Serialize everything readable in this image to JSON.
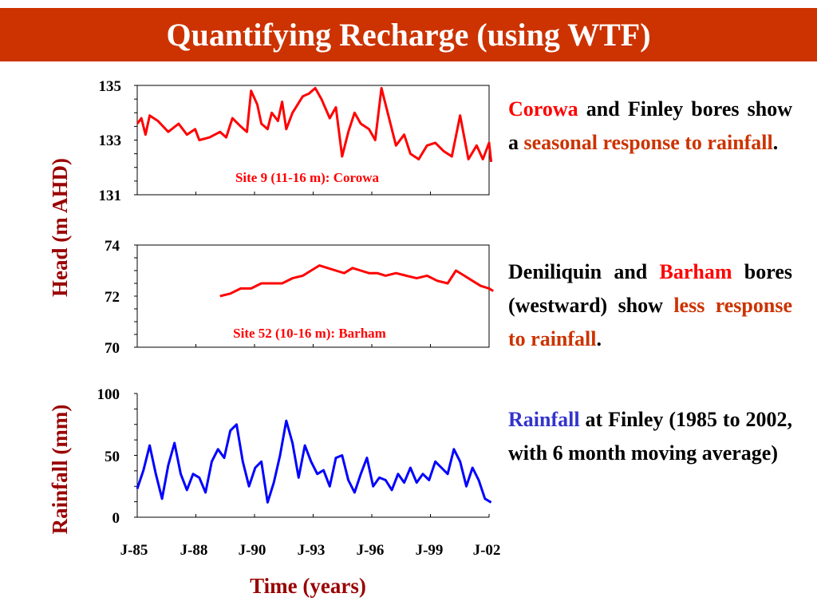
{
  "title": "Quantifying Recharge (using WTF)",
  "colors": {
    "title_bar": "#cc3300",
    "head_series": "#ff0000",
    "rainfall_series": "#0000ff",
    "axis_title": "#990000",
    "highlight_red": "#ff0000",
    "highlight_orange": "#cc3300",
    "highlight_blue": "#3333cc"
  },
  "shared_axes": {
    "head_ylabel": "Head (m AHD)",
    "rainfall_ylabel": "Rainfall (mm)",
    "xlabel": "Time (years)",
    "x_tick_labels": [
      "J-85",
      "J-88",
      "J-90",
      "J-93",
      "J-96",
      "J-99",
      "J-02"
    ]
  },
  "chart_data": [
    {
      "type": "line",
      "name": "corowa-head",
      "label": "Site 9 (11-16 m): Corowa",
      "ylim": [
        131,
        135
      ],
      "y_ticks": [
        "135",
        "133",
        "131"
      ],
      "xlim": [
        1985.0,
        2002.0
      ],
      "grid": false,
      "series": [
        {
          "color": "#ff0000",
          "points": [
            [
              1985.0,
              133.6
            ],
            [
              1985.2,
              133.8
            ],
            [
              1985.4,
              133.2
            ],
            [
              1985.6,
              133.9
            ],
            [
              1986.0,
              133.7
            ],
            [
              1986.5,
              133.3
            ],
            [
              1987.0,
              133.6
            ],
            [
              1987.4,
              133.2
            ],
            [
              1987.8,
              133.4
            ],
            [
              1988.0,
              133.0
            ],
            [
              1988.5,
              133.1
            ],
            [
              1989.0,
              133.3
            ],
            [
              1989.3,
              133.1
            ],
            [
              1989.6,
              133.8
            ],
            [
              1990.0,
              133.5
            ],
            [
              1990.3,
              133.3
            ],
            [
              1990.5,
              134.8
            ],
            [
              1990.8,
              134.3
            ],
            [
              1991.0,
              133.6
            ],
            [
              1991.3,
              133.4
            ],
            [
              1991.5,
              134.0
            ],
            [
              1991.8,
              133.7
            ],
            [
              1992.0,
              134.4
            ],
            [
              1992.2,
              133.4
            ],
            [
              1992.5,
              134.0
            ],
            [
              1993.0,
              134.6
            ],
            [
              1993.3,
              134.7
            ],
            [
              1993.6,
              134.9
            ],
            [
              1993.9,
              134.5
            ],
            [
              1994.3,
              133.8
            ],
            [
              1994.6,
              134.2
            ],
            [
              1994.9,
              132.4
            ],
            [
              1995.2,
              133.3
            ],
            [
              1995.5,
              134.0
            ],
            [
              1995.8,
              133.6
            ],
            [
              1996.2,
              133.4
            ],
            [
              1996.5,
              133.0
            ],
            [
              1996.8,
              134.9
            ],
            [
              1997.1,
              134.0
            ],
            [
              1997.5,
              132.8
            ],
            [
              1997.9,
              133.2
            ],
            [
              1998.2,
              132.5
            ],
            [
              1998.6,
              132.3
            ],
            [
              1999.0,
              132.8
            ],
            [
              1999.4,
              132.9
            ],
            [
              1999.8,
              132.6
            ],
            [
              2000.2,
              132.4
            ],
            [
              2000.6,
              133.9
            ],
            [
              2001.0,
              132.3
            ],
            [
              2001.4,
              132.8
            ],
            [
              2001.7,
              132.3
            ],
            [
              2002.0,
              132.9
            ],
            [
              2002.1,
              132.2
            ]
          ]
        }
      ]
    },
    {
      "type": "line",
      "name": "barham-head",
      "label": "Site 52 (10-16 m): Barham",
      "ylim": [
        70,
        74
      ],
      "y_ticks": [
        "74",
        "72",
        "70"
      ],
      "xlim": [
        1985.0,
        2002.0
      ],
      "grid": false,
      "series": [
        {
          "color": "#ff0000",
          "points": [
            [
              1989.0,
              72.0
            ],
            [
              1989.5,
              72.1
            ],
            [
              1990.0,
              72.3
            ],
            [
              1990.5,
              72.3
            ],
            [
              1991.0,
              72.5
            ],
            [
              1991.5,
              72.5
            ],
            [
              1992.0,
              72.5
            ],
            [
              1992.5,
              72.7
            ],
            [
              1993.0,
              72.8
            ],
            [
              1993.4,
              73.0
            ],
            [
              1993.8,
              73.2
            ],
            [
              1994.2,
              73.1
            ],
            [
              1994.6,
              73.0
            ],
            [
              1995.0,
              72.9
            ],
            [
              1995.4,
              73.1
            ],
            [
              1995.8,
              73.0
            ],
            [
              1996.2,
              72.9
            ],
            [
              1996.6,
              72.9
            ],
            [
              1997.0,
              72.8
            ],
            [
              1997.5,
              72.9
            ],
            [
              1998.0,
              72.8
            ],
            [
              1998.5,
              72.7
            ],
            [
              1999.0,
              72.8
            ],
            [
              1999.5,
              72.6
            ],
            [
              2000.0,
              72.5
            ],
            [
              2000.4,
              73.0
            ],
            [
              2000.8,
              72.8
            ],
            [
              2001.2,
              72.6
            ],
            [
              2001.6,
              72.4
            ],
            [
              2002.0,
              72.3
            ],
            [
              2002.2,
              72.2
            ]
          ]
        }
      ]
    },
    {
      "type": "line",
      "name": "finley-rainfall",
      "label": "",
      "ylim": [
        0,
        100
      ],
      "y_ticks": [
        "100",
        "50",
        "0"
      ],
      "xlim": [
        1985.0,
        2002.0
      ],
      "grid": false,
      "series": [
        {
          "color": "#0000ff",
          "points": [
            [
              1985.0,
              23
            ],
            [
              1985.3,
              38
            ],
            [
              1985.6,
              58
            ],
            [
              1985.9,
              35
            ],
            [
              1986.2,
              15
            ],
            [
              1986.5,
              42
            ],
            [
              1986.8,
              60
            ],
            [
              1987.1,
              35
            ],
            [
              1987.4,
              22
            ],
            [
              1987.7,
              35
            ],
            [
              1988.0,
              32
            ],
            [
              1988.3,
              20
            ],
            [
              1988.6,
              45
            ],
            [
              1988.9,
              55
            ],
            [
              1989.2,
              48
            ],
            [
              1989.5,
              70
            ],
            [
              1989.8,
              75
            ],
            [
              1990.1,
              45
            ],
            [
              1990.4,
              25
            ],
            [
              1990.7,
              40
            ],
            [
              1991.0,
              45
            ],
            [
              1991.3,
              12
            ],
            [
              1991.6,
              28
            ],
            [
              1991.9,
              50
            ],
            [
              1992.2,
              78
            ],
            [
              1992.5,
              60
            ],
            [
              1992.8,
              32
            ],
            [
              1993.1,
              58
            ],
            [
              1993.4,
              45
            ],
            [
              1993.7,
              35
            ],
            [
              1994.0,
              38
            ],
            [
              1994.3,
              25
            ],
            [
              1994.6,
              48
            ],
            [
              1994.9,
              50
            ],
            [
              1995.2,
              30
            ],
            [
              1995.5,
              20
            ],
            [
              1995.8,
              35
            ],
            [
              1996.1,
              48
            ],
            [
              1996.4,
              25
            ],
            [
              1996.7,
              32
            ],
            [
              1997.0,
              30
            ],
            [
              1997.3,
              22
            ],
            [
              1997.6,
              35
            ],
            [
              1997.9,
              28
            ],
            [
              1998.2,
              40
            ],
            [
              1998.5,
              28
            ],
            [
              1998.8,
              35
            ],
            [
              1999.1,
              30
            ],
            [
              1999.4,
              45
            ],
            [
              1999.7,
              40
            ],
            [
              2000.0,
              35
            ],
            [
              2000.3,
              55
            ],
            [
              2000.6,
              45
            ],
            [
              2000.9,
              25
            ],
            [
              2001.2,
              40
            ],
            [
              2001.5,
              30
            ],
            [
              2001.8,
              15
            ],
            [
              2002.1,
              12
            ]
          ]
        }
      ]
    }
  ],
  "text_blocks": [
    {
      "segments": [
        {
          "text": "Corowa",
          "color": "red"
        },
        {
          "text": " and Finley bores show a ",
          "color": "black"
        },
        {
          "text": "seasonal response to rainfall",
          "color": "orange"
        },
        {
          "text": ".",
          "color": "black"
        }
      ]
    },
    {
      "segments": [
        {
          "text": "Deniliquin and ",
          "color": "black"
        },
        {
          "text": "Barham",
          "color": "red"
        },
        {
          "text": " bores (westward) show ",
          "color": "black"
        },
        {
          "text": "less response to rainfall",
          "color": "orange"
        },
        {
          "text": ".",
          "color": "black"
        }
      ]
    },
    {
      "segments": [
        {
          "text": "Rainfall",
          "color": "blue"
        },
        {
          "text": " at Finley (1985 to 2002, with 6 month moving average)",
          "color": "black"
        }
      ]
    }
  ]
}
